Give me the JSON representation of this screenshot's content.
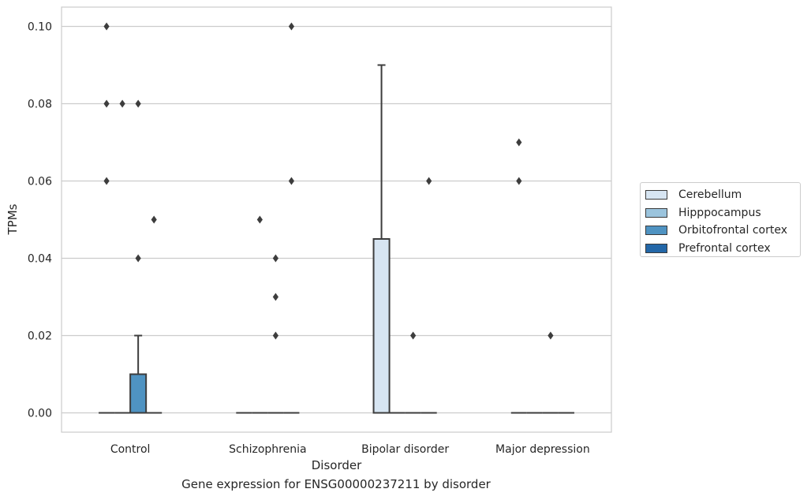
{
  "chart_data": {
    "type": "box",
    "xlabel": "Disorder",
    "ylabel": "TPMs",
    "caption": "Gene expression for ENSG00000237211 by disorder",
    "ylim": [
      -0.005,
      0.105
    ],
    "yticks": [
      "0.00",
      "0.02",
      "0.04",
      "0.06",
      "0.08",
      "0.10"
    ],
    "grid": "horizontal",
    "legend_position": "right",
    "categories": [
      "Control",
      "Schizophrenia",
      "Bipolar disorder",
      "Major depression"
    ],
    "series": [
      {
        "name": "Cerebellum",
        "color": "#d7e5f2",
        "boxes": [
          {
            "category": "Control",
            "q1": 0.0,
            "median": 0.0,
            "q3": 0.0,
            "whisker_low": 0.0,
            "whisker_high": 0.0,
            "outliers": [
              0.06,
              0.08,
              0.1
            ]
          },
          {
            "category": "Schizophrenia",
            "q1": 0.0,
            "median": 0.0,
            "q3": 0.0,
            "whisker_low": 0.0,
            "whisker_high": 0.0,
            "outliers": []
          },
          {
            "category": "Bipolar disorder",
            "q1": 0.0,
            "median": 0.0,
            "q3": 0.045,
            "whisker_low": 0.0,
            "whisker_high": 0.09,
            "outliers": []
          },
          {
            "category": "Major depression",
            "q1": 0.0,
            "median": 0.0,
            "q3": 0.0,
            "whisker_low": 0.0,
            "whisker_high": 0.0,
            "outliers": [
              0.06,
              0.07
            ]
          }
        ]
      },
      {
        "name": "Hipppocampus",
        "color": "#9bc4dd",
        "boxes": [
          {
            "category": "Control",
            "q1": 0.0,
            "median": 0.0,
            "q3": 0.0,
            "whisker_low": 0.0,
            "whisker_high": 0.0,
            "outliers": [
              0.08
            ]
          },
          {
            "category": "Schizophrenia",
            "q1": 0.0,
            "median": 0.0,
            "q3": 0.0,
            "whisker_low": 0.0,
            "whisker_high": 0.0,
            "outliers": [
              0.05
            ]
          },
          {
            "category": "Bipolar disorder",
            "q1": 0.0,
            "median": 0.0,
            "q3": 0.0,
            "whisker_low": 0.0,
            "whisker_high": 0.0,
            "outliers": []
          },
          {
            "category": "Major depression",
            "q1": 0.0,
            "median": 0.0,
            "q3": 0.0,
            "whisker_low": 0.0,
            "whisker_high": 0.0,
            "outliers": []
          }
        ]
      },
      {
        "name": "Orbitofrontal cortex",
        "color": "#4f93c2",
        "boxes": [
          {
            "category": "Control",
            "q1": 0.0,
            "median": 0.0,
            "q3": 0.01,
            "whisker_low": 0.0,
            "whisker_high": 0.02,
            "outliers": [
              0.04,
              0.08
            ]
          },
          {
            "category": "Schizophrenia",
            "q1": 0.0,
            "median": 0.0,
            "q3": 0.0,
            "whisker_low": 0.0,
            "whisker_high": 0.0,
            "outliers": [
              0.02,
              0.03,
              0.04
            ]
          },
          {
            "category": "Bipolar disorder",
            "q1": 0.0,
            "median": 0.0,
            "q3": 0.0,
            "whisker_low": 0.0,
            "whisker_high": 0.0,
            "outliers": [
              0.02
            ]
          },
          {
            "category": "Major depression",
            "q1": 0.0,
            "median": 0.0,
            "q3": 0.0,
            "whisker_low": 0.0,
            "whisker_high": 0.0,
            "outliers": [
              0.02
            ]
          }
        ]
      },
      {
        "name": "Prefrontal cortex",
        "color": "#2367a8",
        "boxes": [
          {
            "category": "Control",
            "q1": 0.0,
            "median": 0.0,
            "q3": 0.0,
            "whisker_low": 0.0,
            "whisker_high": 0.0,
            "outliers": [
              0.05
            ]
          },
          {
            "category": "Schizophrenia",
            "q1": 0.0,
            "median": 0.0,
            "q3": 0.0,
            "whisker_low": 0.0,
            "whisker_high": 0.0,
            "outliers": [
              0.06,
              0.1
            ]
          },
          {
            "category": "Bipolar disorder",
            "q1": 0.0,
            "median": 0.0,
            "q3": 0.0,
            "whisker_low": 0.0,
            "whisker_high": 0.0,
            "outliers": [
              0.06
            ]
          },
          {
            "category": "Major depression",
            "q1": 0.0,
            "median": 0.0,
            "q3": 0.0,
            "whisker_low": 0.0,
            "whisker_high": 0.0,
            "outliers": []
          }
        ]
      }
    ]
  }
}
